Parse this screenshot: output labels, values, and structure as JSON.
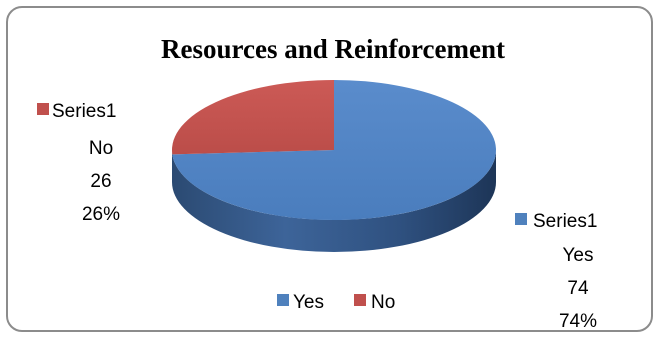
{
  "chart_data": {
    "type": "pie",
    "title": "Resources and Reinforcement",
    "series_name": "Series1",
    "slices": [
      {
        "category": "Yes",
        "value": 74,
        "percent": "74%",
        "color": "#4f81bd"
      },
      {
        "category": "No",
        "value": 26,
        "percent": "26%",
        "color": "#c0504d"
      }
    ],
    "legend": {
      "position": "bottom",
      "entries": [
        "Yes",
        "No"
      ]
    }
  }
}
